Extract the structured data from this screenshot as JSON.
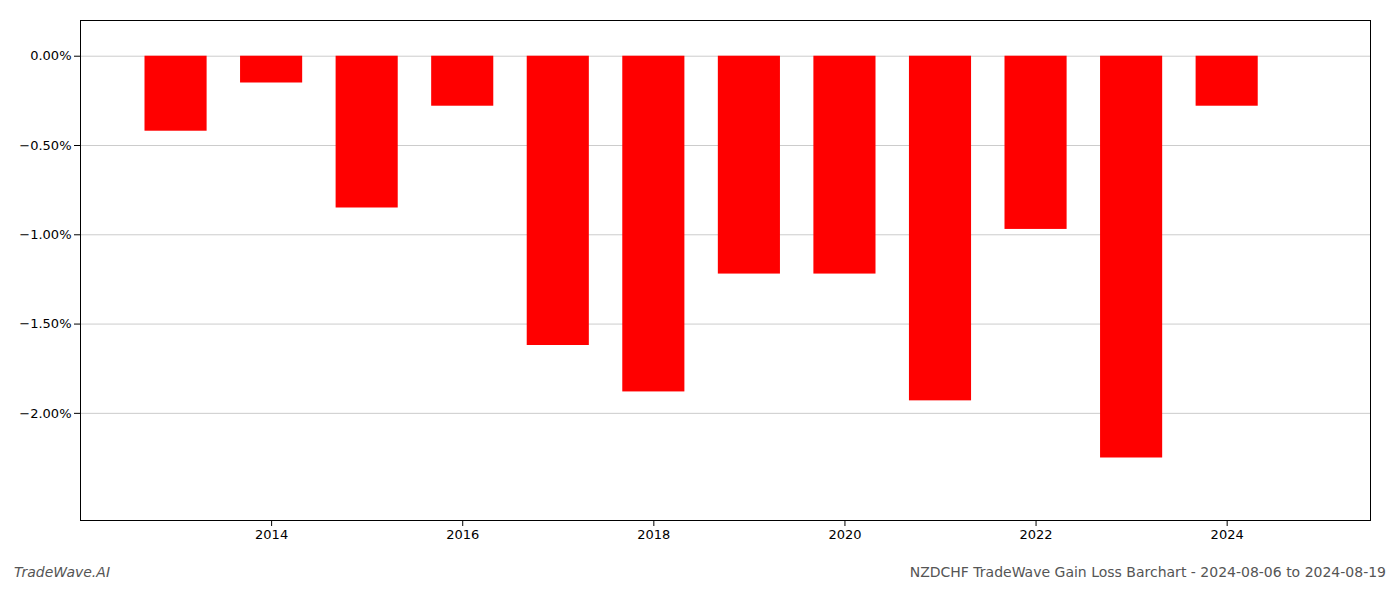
{
  "chart_data": {
    "type": "bar",
    "title": "NZDCHF TradeWave Gain Loss Barchart - 2024-08-06 to 2024-08-19",
    "annotations": [
      "TradeWave.AI"
    ],
    "x": [
      2013,
      2014,
      2015,
      2016,
      2017,
      2018,
      2019,
      2020,
      2021,
      2022,
      2023,
      2024
    ],
    "values": [
      -0.0042,
      -0.0015,
      -0.0085,
      -0.0028,
      -0.0162,
      -0.0188,
      -0.0122,
      -0.0122,
      -0.0193,
      -0.0097,
      -0.0225,
      -0.0028
    ],
    "color": "#ff0000",
    "xlim": [
      2012.0,
      2025.5
    ],
    "xticks": [
      2014,
      2016,
      2018,
      2020,
      2022,
      2024
    ],
    "ylim": [
      -0.026,
      0.002
    ],
    "yticks": [
      {
        "value": 0.0,
        "label": "0.00%"
      },
      {
        "value": -0.005,
        "label": "−0.50%"
      },
      {
        "value": -0.01,
        "label": "−1.00%"
      },
      {
        "value": -0.015,
        "label": "−1.50%"
      },
      {
        "value": -0.02,
        "label": "−2.00%"
      }
    ],
    "grid": true
  }
}
